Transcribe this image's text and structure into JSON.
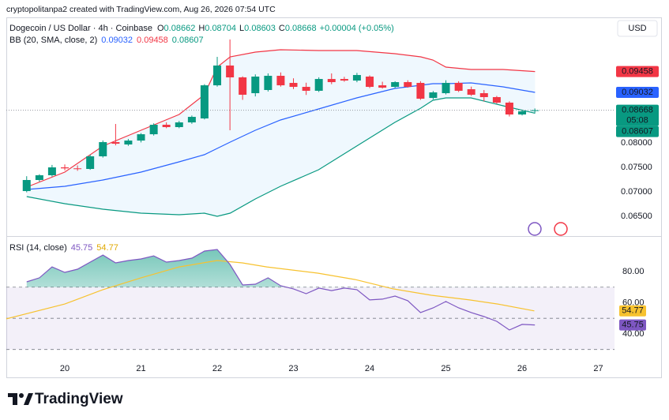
{
  "chart_data": {
    "type": "candlestick",
    "header": "cryptopolitanpa2 created with TradingView.com, Aug 26, 2026 07:54 UTC",
    "title": "Dogecoin / US Dollar · 4h · Coinbase",
    "currency": "USD",
    "ohlc_labels": [
      "O",
      "H",
      "L",
      "C"
    ],
    "change_label": "+0.00004 (+0.05%)",
    "countdown": "05:08",
    "footer": "TradingView",
    "up_color": "#089981",
    "down_color": "#f23645",
    "grid": false,
    "x": [
      19.5,
      19.667,
      19.833,
      20,
      20.167,
      20.333,
      20.5,
      20.667,
      20.833,
      21,
      21.167,
      21.333,
      21.5,
      21.667,
      21.833,
      22,
      22.167,
      22.333,
      22.5,
      22.667,
      22.833,
      23,
      23.167,
      23.333,
      23.5,
      23.667,
      23.833,
      24,
      24.167,
      24.333,
      24.5,
      24.667,
      24.833,
      25,
      25.167,
      25.333,
      25.5,
      25.667,
      25.833,
      26,
      26.167
    ],
    "open": [
      0.07016,
      0.07242,
      0.07339,
      0.075,
      0.0748,
      0.07468,
      0.07726,
      0.08016,
      0.07968,
      0.08048,
      0.08177,
      0.08371,
      0.08323,
      0.08419,
      0.085,
      0.09177,
      0.09581,
      0.09339,
      0.09016,
      0.09081,
      0.09371,
      0.09226,
      0.09145,
      0.09065,
      0.09306,
      0.09306,
      0.09274,
      0.09355,
      0.09177,
      0.09145,
      0.09242,
      0.09226,
      0.08919,
      0.09016,
      0.09226,
      0.09097,
      0.09016,
      0.08936,
      0.08823,
      0.08581,
      0.08662
    ],
    "high": [
      0.0732,
      0.0736,
      0.0755,
      0.0756,
      0.0754,
      0.0776,
      0.0805,
      0.08387,
      0.0808,
      0.082,
      0.084,
      0.0842,
      0.0845,
      0.0856,
      0.092,
      0.09758,
      0.10113,
      0.0936,
      0.094,
      0.0942,
      0.0944,
      0.0932,
      0.0923,
      0.0934,
      0.0942,
      0.0935,
      0.0943,
      0.0938,
      0.0925,
      0.0926,
      0.0928,
      0.0926,
      0.0906,
      0.0928,
      0.0926,
      0.0915,
      0.0908,
      0.0896,
      0.0885,
      0.0868,
      0.08704
    ],
    "low": [
      0.0699,
      0.0721,
      0.0731,
      0.0744,
      0.0743,
      0.0745,
      0.077,
      0.0795,
      0.0794,
      0.0801,
      0.0815,
      0.083,
      0.083,
      0.0839,
      0.0848,
      0.0915,
      0.08258,
      0.0888,
      0.0895,
      0.0905,
      0.0915,
      0.091,
      0.0898,
      0.0904,
      0.092,
      0.0925,
      0.0924,
      0.0912,
      0.0911,
      0.0912,
      0.0913,
      0.0888,
      0.0889,
      0.0899,
      0.0904,
      0.0896,
      0.0885,
      0.088,
      0.0854,
      0.0856,
      0.08603
    ],
    "close": [
      0.07242,
      0.07339,
      0.075,
      0.0748,
      0.07468,
      0.07726,
      0.08016,
      0.07984,
      0.08048,
      0.08177,
      0.08371,
      0.08323,
      0.08419,
      0.08532,
      0.09177,
      0.09581,
      0.09339,
      0.08984,
      0.09355,
      0.09371,
      0.09177,
      0.09145,
      0.09065,
      0.09306,
      0.09242,
      0.09274,
      0.09387,
      0.09145,
      0.09129,
      0.09242,
      0.09145,
      0.08903,
      0.09032,
      0.09226,
      0.09065,
      0.08984,
      0.08936,
      0.08823,
      0.08581,
      0.08645,
      0.08668
    ],
    "xlim": [
      19.233,
      27.212
    ],
    "xticks": [
      20,
      21,
      22,
      23,
      24,
      25,
      26,
      27
    ],
    "ylim": [
      0.06113,
      0.10565
    ],
    "yticks": [
      {
        "value": 0.065,
        "label": "0.06500"
      },
      {
        "value": 0.07,
        "label": "0.07000"
      },
      {
        "value": 0.075,
        "label": "0.07500"
      },
      {
        "value": 0.08,
        "label": "0.08000"
      }
    ],
    "bb": {
      "name": "BB (20, SMA, close, 2)",
      "fill": "rgba(33,150,243,0.07)",
      "x": [
        19.5,
        20,
        20.5,
        21,
        21.5,
        21.83,
        22,
        22.17,
        22.5,
        22.83,
        23.33,
        23.83,
        24.33,
        24.67,
        24.83,
        25,
        25.33,
        25.75,
        26.17
      ],
      "basis": {
        "color": "#2962ff",
        "values": [
          0.07048,
          0.07113,
          0.07242,
          0.07403,
          0.07613,
          0.07758,
          0.07887,
          0.08016,
          0.08258,
          0.08468,
          0.08694,
          0.08919,
          0.09113,
          0.09177,
          0.0921,
          0.0921,
          0.09226,
          0.09145,
          0.09032
        ]
      },
      "upper": {
        "color": "#f23645",
        "values": [
          0.07097,
          0.07403,
          0.07935,
          0.08258,
          0.08581,
          0.08984,
          0.09548,
          0.09758,
          0.09855,
          0.09903,
          0.09887,
          0.09887,
          0.09823,
          0.09758,
          0.09694,
          0.09548,
          0.095,
          0.095,
          0.09458
        ]
      },
      "lower": {
        "color": "#089981",
        "values": [
          0.06903,
          0.06758,
          0.06645,
          0.06564,
          0.06532,
          0.06564,
          0.065,
          0.06564,
          0.06855,
          0.07113,
          0.07452,
          0.07935,
          0.08419,
          0.0871,
          0.08871,
          0.08919,
          0.08919,
          0.08758,
          0.08607
        ]
      }
    },
    "rsi": {
      "name": "RSI (14, close)",
      "color": "#7e57c2",
      "values": [
        73.4,
        76.0,
        83.0,
        79.5,
        81.5,
        86.1,
        90.6,
        85.6,
        87.1,
        88.1,
        90.1,
        86.1,
        87.1,
        88.6,
        93.2,
        94.2,
        84.6,
        71.4,
        71.9,
        76.0,
        70.9,
        68.9,
        65.8,
        69.4,
        67.8,
        69.4,
        68.4,
        61.8,
        62.3,
        64.3,
        61.3,
        53.7,
        56.7,
        60.8,
        56.7,
        53.7,
        51.1,
        48.1,
        42.5,
        46.1,
        45.75
      ],
      "sma": {
        "color": "#f7c22f",
        "x": [
          19.23,
          20,
          20.5,
          21,
          21.5,
          22,
          22.33,
          22.65,
          23.32,
          23.81,
          24.31,
          24.81,
          25.31,
          25.68,
          26.16
        ],
        "values": [
          49.6,
          59.2,
          68.4,
          76.0,
          83.0,
          87.1,
          85.6,
          83.0,
          79.0,
          74.9,
          68.9,
          64.8,
          61.8,
          59.2,
          54.77
        ]
      },
      "levels": [
        70,
        50,
        30
      ],
      "ylim": [
        27.3,
        102.3
      ],
      "yticks": [
        {
          "value": 40,
          "label": "40.00"
        },
        {
          "value": 60,
          "label": "60.00"
        },
        {
          "value": 80,
          "label": "80.00"
        }
      ]
    }
  }
}
